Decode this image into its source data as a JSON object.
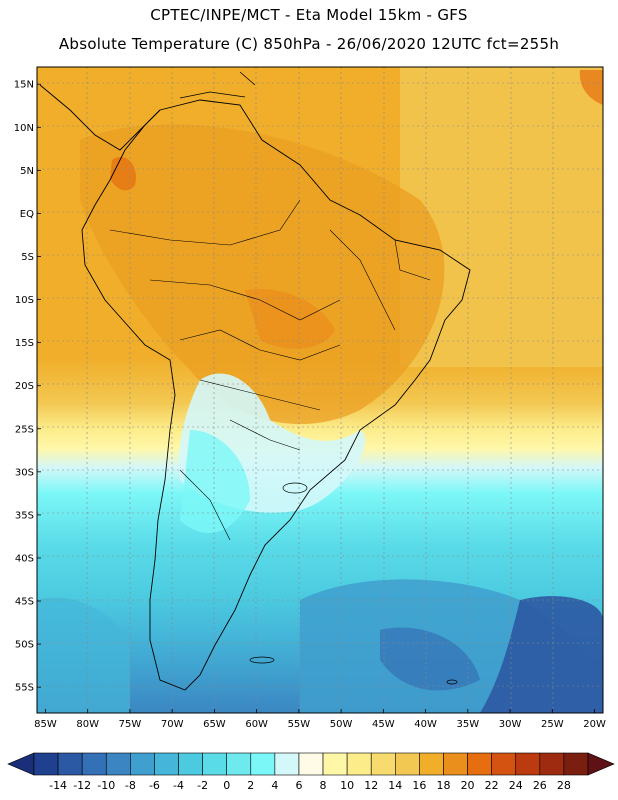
{
  "title_line1": "CPTEC/INPE/MCT -  Eta Model 15km - GFS",
  "title_line2": "Absolute Temperature (C) 850hPa - 26/06/2020 12UTC fct=255h",
  "map": {
    "lon_range": [
      -86,
      -19
    ],
    "lat_range": [
      -58,
      17
    ],
    "lat_ticks": [
      {
        "value": 15,
        "label": "15N"
      },
      {
        "value": 10,
        "label": "10N"
      },
      {
        "value": 5,
        "label": "5N"
      },
      {
        "value": 0,
        "label": "EQ"
      },
      {
        "value": -5,
        "label": "5S"
      },
      {
        "value": -10,
        "label": "10S"
      },
      {
        "value": -15,
        "label": "15S"
      },
      {
        "value": -20,
        "label": "20S"
      },
      {
        "value": -25,
        "label": "25S"
      },
      {
        "value": -30,
        "label": "30S"
      },
      {
        "value": -35,
        "label": "35S"
      },
      {
        "value": -40,
        "label": "40S"
      },
      {
        "value": -45,
        "label": "45S"
      },
      {
        "value": -50,
        "label": "50S"
      },
      {
        "value": -55,
        "label": "55S"
      }
    ],
    "lon_ticks": [
      {
        "value": -85,
        "label": "85W"
      },
      {
        "value": -80,
        "label": "80W"
      },
      {
        "value": -75,
        "label": "75W"
      },
      {
        "value": -70,
        "label": "70W"
      },
      {
        "value": -65,
        "label": "65W"
      },
      {
        "value": -60,
        "label": "60W"
      },
      {
        "value": -55,
        "label": "55W"
      },
      {
        "value": -50,
        "label": "50W"
      },
      {
        "value": -45,
        "label": "45W"
      },
      {
        "value": -40,
        "label": "40W"
      },
      {
        "value": -35,
        "label": "35W"
      },
      {
        "value": -30,
        "label": "30W"
      },
      {
        "value": -25,
        "label": "25W"
      },
      {
        "value": -20,
        "label": "20W"
      }
    ]
  },
  "colorbar": {
    "labels": [
      "-14",
      "-12",
      "-10",
      "-8",
      "-6",
      "-4",
      "-2",
      "0",
      "2",
      "4",
      "6",
      "8",
      "10",
      "12",
      "14",
      "16",
      "18",
      "20",
      "22",
      "24",
      "26",
      "28"
    ],
    "colors": [
      "#1f3f8f",
      "#2c59a3",
      "#3470b5",
      "#3b86c2",
      "#3f9fce",
      "#45b6d9",
      "#4ccbe0",
      "#5adbe8",
      "#6ee9ee",
      "#7cf7f7",
      "#d4f7f9",
      "#fffbe6",
      "#fff7a8",
      "#fcec8a",
      "#f8db6e",
      "#f3c852",
      "#f0ae2a",
      "#eb8f1c",
      "#e66d10",
      "#d55311",
      "#bc3a10",
      "#9e2a10",
      "#7a1e10"
    ],
    "low_color": "#1a2e7a",
    "high_color": "#5e1215"
  }
}
